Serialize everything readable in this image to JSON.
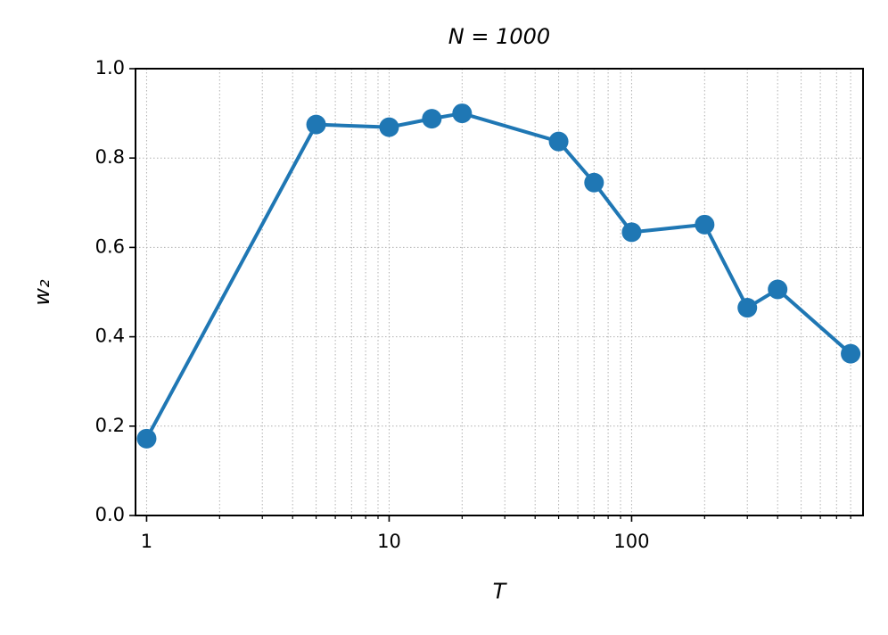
{
  "chart_data": {
    "type": "line",
    "title": "N = 1000",
    "xlabel": "T",
    "ylabel": "w₂",
    "x": [
      1,
      5,
      10,
      15,
      20,
      50,
      70,
      100,
      200,
      300,
      400,
      800
    ],
    "series": [
      {
        "name": "w₂",
        "color": "#1f77b4",
        "values": [
          0.172,
          0.875,
          0.869,
          0.888,
          0.9,
          0.837,
          0.745,
          0.634,
          0.651,
          0.465,
          0.506,
          0.362
        ]
      }
    ],
    "xscale": "log",
    "xlim": [
      0.9,
      900
    ],
    "xticks": [
      1,
      10,
      100
    ],
    "ylim": [
      0,
      1
    ],
    "yticks": [
      {
        "value": 0,
        "label": "0.0"
      },
      0.2,
      0.4,
      0.6,
      0.8,
      {
        "value": 1,
        "label": "1.0"
      }
    ],
    "grid": true,
    "minor_grid": true,
    "legend": false
  }
}
